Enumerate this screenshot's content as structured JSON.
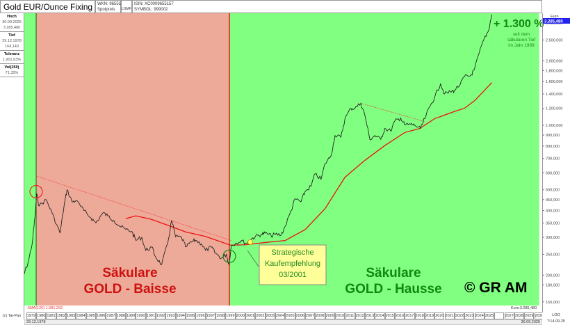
{
  "header": {
    "title": "Gold EUR/Ounce Fixing",
    "wkn": "WKN: 965515",
    "type": "Spotpreis",
    "exchange": "LGMF",
    "isin": "ISIN: XC0009655157",
    "symbol": "SYMBOL: 999002"
  },
  "stats": [
    {
      "label": "Hoch",
      "values": [
        "30.09.2025",
        "3.285,480"
      ]
    },
    {
      "label": "Tief",
      "values": [
        "29.12.1978",
        "164,140"
      ]
    },
    {
      "label": "Toleranz",
      "values": [
        "1.901,63%"
      ]
    },
    {
      "label": "Vol(250)",
      "values": [
        "71,32%"
      ]
    }
  ],
  "footer": {
    "copyright": "(c) Tai-Pan",
    "start_date": "29.12.1978",
    "end_date": "30.09.2025",
    "time": "T:14.09.25",
    "scale": "LOG",
    "sma_label": "- SMA(120) 1.581,292",
    "kurs": "Kurs:3.285,480"
  },
  "colors": {
    "baisse_bg": "#eeaa98",
    "hausse_bg": "#80ff80",
    "price": "#222222",
    "sma": "#ee1111",
    "divider": "#ee0000"
  },
  "chart_data": {
    "type": "line",
    "yscale": "log",
    "ylim": [
      150,
      3400
    ],
    "xlim": [
      1978,
      2030.5
    ],
    "currency_label": "Euro",
    "current_value": "3.285,480",
    "y_ticks": [
      [
        3000,
        "3.000,000"
      ],
      [
        2500,
        "2.500,000"
      ],
      [
        2000,
        "2.000,000"
      ],
      [
        1800,
        "1.800,000"
      ],
      [
        1600,
        "1.600,000"
      ],
      [
        1400,
        "1.400,000"
      ],
      [
        1200,
        "1.200,000"
      ],
      [
        1000,
        "1.000,000"
      ],
      [
        900,
        "900,000"
      ],
      [
        800,
        "800,000"
      ],
      [
        700,
        "700,000"
      ],
      [
        600,
        "600,000"
      ],
      [
        500,
        "500,000"
      ],
      [
        450,
        "450,000"
      ],
      [
        400,
        "400,000"
      ],
      [
        350,
        "350,000"
      ],
      [
        300,
        "300,000"
      ],
      [
        250,
        "250,000"
      ],
      [
        200,
        "200,000"
      ],
      [
        180,
        "180,000"
      ],
      [
        150,
        "150,000"
      ]
    ],
    "x_ticks": [
      "1979",
      "1980",
      "1981",
      "1982",
      "1983",
      "1984",
      "1985",
      "1986",
      "1987",
      "1988",
      "1989",
      "1990",
      "1991",
      "1992",
      "1993",
      "1994",
      "1995",
      "1996",
      "1997",
      "1998",
      "1999",
      "2000",
      "2001",
      "2002",
      "2003",
      "2004",
      "2005",
      "2006",
      "2007",
      "2008",
      "2009",
      "2010",
      "2011",
      "2012",
      "2013",
      "2014",
      "2015",
      "2016",
      "2017",
      "2018",
      "2019",
      "2020",
      "2021",
      "2022",
      "2023",
      "2024",
      "2025",
      "",
      "2027",
      "2028",
      "2029",
      "2030",
      "203"
    ],
    "regions": [
      {
        "from": 1978,
        "to": 1980,
        "type": "hausse"
      },
      {
        "from": 1980,
        "to": 1999.4,
        "type": "baisse"
      },
      {
        "from": 1999.4,
        "to": 2030.5,
        "type": "hausse"
      }
    ],
    "price": [
      [
        1978.0,
        164
      ],
      [
        1978.6,
        190
      ],
      [
        1979.2,
        230
      ],
      [
        1979.6,
        280
      ],
      [
        1979.9,
        380
      ],
      [
        1980.05,
        480
      ],
      [
        1980.3,
        420
      ],
      [
        1981,
        450
      ],
      [
        1981.6,
        390
      ],
      [
        1982.4,
        314
      ],
      [
        1982.8,
        420
      ],
      [
        1983.1,
        500
      ],
      [
        1983.6,
        440
      ],
      [
        1984,
        445
      ],
      [
        1984.8,
        400
      ],
      [
        1985.5,
        370
      ],
      [
        1986,
        351
      ],
      [
        1986.7,
        390
      ],
      [
        1987.2,
        378
      ],
      [
        1987.8,
        360
      ],
      [
        1988.4,
        338
      ],
      [
        1989,
        327
      ],
      [
        1989.6,
        320
      ],
      [
        1990,
        291
      ],
      [
        1990.6,
        300
      ],
      [
        1991,
        261
      ],
      [
        1991.6,
        270
      ],
      [
        1992,
        243
      ],
      [
        1992.6,
        224
      ],
      [
        1993.2,
        280
      ],
      [
        1993.6,
        360
      ],
      [
        1994,
        302
      ],
      [
        1994.6,
        300
      ],
      [
        1995,
        271
      ],
      [
        1995.6,
        285
      ],
      [
        1996,
        291
      ],
      [
        1996.6,
        280
      ],
      [
        1997,
        261
      ],
      [
        1997.6,
        270
      ],
      [
        1998,
        253
      ],
      [
        1998.6,
        240
      ],
      [
        1999.1,
        250
      ],
      [
        1999.35,
        224
      ],
      [
        1999.6,
        275
      ],
      [
        2000,
        281
      ],
      [
        2000.6,
        290
      ],
      [
        2001.1,
        281
      ],
      [
        2001.6,
        295
      ],
      [
        2002,
        302
      ],
      [
        2002.6,
        310
      ],
      [
        2003,
        314
      ],
      [
        2003.6,
        305
      ],
      [
        2004,
        310
      ],
      [
        2004.6,
        308
      ],
      [
        2005,
        338
      ],
      [
        2005.6,
        400
      ],
      [
        2006,
        454
      ],
      [
        2006.6,
        440
      ],
      [
        2007,
        491
      ],
      [
        2007.6,
        520
      ],
      [
        2008,
        593
      ],
      [
        2008.6,
        560
      ],
      [
        2009,
        662
      ],
      [
        2009.6,
        720
      ],
      [
        2010,
        895
      ],
      [
        2010.6,
        880
      ],
      [
        2011,
        1073
      ],
      [
        2011.6,
        1200
      ],
      [
        2012,
        1200
      ],
      [
        2012.6,
        1266
      ],
      [
        2013,
        1115
      ],
      [
        2013.5,
        859
      ],
      [
        2014,
        895
      ],
      [
        2014.6,
        860
      ],
      [
        2015,
        966
      ],
      [
        2015.6,
        940
      ],
      [
        2016,
        1044
      ],
      [
        2016.6,
        1080
      ],
      [
        2017,
        1004
      ],
      [
        2017.6,
        1010
      ],
      [
        2018,
        1000
      ],
      [
        2018.6,
        966
      ],
      [
        2019,
        1073
      ],
      [
        2019.6,
        1240
      ],
      [
        2020,
        1347
      ],
      [
        2020.6,
        1566
      ],
      [
        2021,
        1400
      ],
      [
        2021.6,
        1430
      ],
      [
        2022,
        1454
      ],
      [
        2022.6,
        1560
      ],
      [
        2023,
        1688
      ],
      [
        2023.6,
        1700
      ],
      [
        2024,
        1820
      ],
      [
        2024.5,
        2190
      ],
      [
        2025,
        2550
      ],
      [
        2025.4,
        2750
      ],
      [
        2025.75,
        3285
      ]
    ],
    "sma": [
      [
        1989,
        367
      ],
      [
        1990,
        378
      ],
      [
        1991.5,
        365
      ],
      [
        1993.5,
        338
      ],
      [
        1995,
        318
      ],
      [
        1997,
        303
      ],
      [
        1999.5,
        276
      ],
      [
        2001,
        277
      ],
      [
        2003,
        284
      ],
      [
        2005,
        290
      ],
      [
        2007,
        326
      ],
      [
        2009,
        408
      ],
      [
        2011,
        572
      ],
      [
        2013,
        686
      ],
      [
        2015,
        804
      ],
      [
        2017,
        925
      ],
      [
        2018.5,
        966
      ],
      [
        2020,
        1073
      ],
      [
        2022,
        1160
      ],
      [
        2023,
        1200
      ],
      [
        2024,
        1300
      ],
      [
        2025.75,
        1581
      ]
    ],
    "trendlines": [
      [
        [
          1980,
          580
        ],
        [
          1999.6,
          290
        ]
      ],
      [
        [
          2012.6,
          1266
        ],
        [
          2019,
          1040
        ]
      ]
    ],
    "markers": [
      {
        "x": 1980,
        "y": 490,
        "color": "#ee2222"
      },
      {
        "x": 1999.4,
        "y": 245,
        "color": "#118811"
      }
    ],
    "annotations": {
      "gain": "+ 1.300 %",
      "gain_sub": [
        "seit dem",
        "säkularen Tief",
        "im Jahr 1999"
      ],
      "buy_box": [
        "Strategische",
        "Kaufempfehlung",
        "03/2001"
      ],
      "buy_point": [
        2001.5,
        285
      ],
      "baisse": [
        "Säkulare",
        "GOLD - Baisse"
      ],
      "hausse": [
        "Säkulare",
        "GOLD - Hausse"
      ],
      "copyright": "© GR AM"
    }
  }
}
